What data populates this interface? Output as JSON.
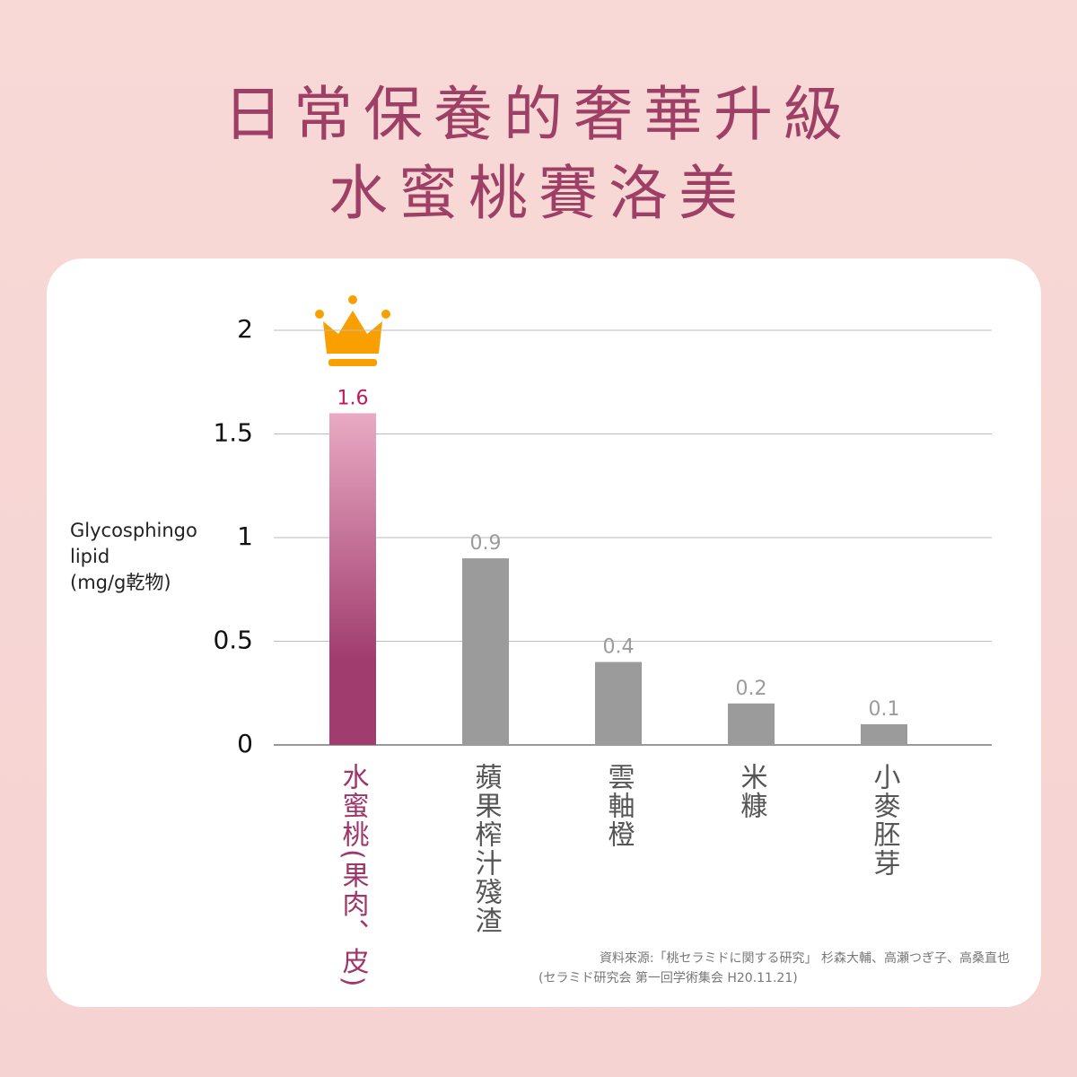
{
  "title_lines": [
    "日常保養的奢華升級",
    "水蜜桃賽洛美"
  ],
  "chart_data": {
    "type": "bar",
    "y_label_lines": [
      "Glycosphingo",
      "lipid",
      "(mg/g乾物)"
    ],
    "categories": [
      "水蜜桃(果肉、皮)",
      "蘋果榨汁殘渣",
      "雲軸橙",
      "米糠",
      "小麥胚芽"
    ],
    "values": [
      1.6,
      0.9,
      0.4,
      0.2,
      0.1
    ],
    "colors": [
      "#a03c6e",
      "#9b9b9b",
      "#9b9b9b",
      "#9b9b9b",
      "#9b9b9b"
    ],
    "highlight_gradient_top": "#e9aac3",
    "label_colors": [
      "#c2185b",
      "#9b9b9b",
      "#9b9b9b",
      "#9b9b9b",
      "#9b9b9b"
    ],
    "category_colors": [
      "#a0356a",
      "#555555",
      "#555555",
      "#555555",
      "#555555"
    ],
    "ylim": [
      0,
      2
    ],
    "yticks": [
      0,
      0.5,
      1,
      1.5,
      2
    ],
    "grid": true
  },
  "source_lines": [
    "資料來源:「桃セラミドに関する研究」 杉森大輔、高瀬つぎ子、高桑直也",
    "(セラミド研究会 第一回学術集会 H20.11.21)"
  ]
}
